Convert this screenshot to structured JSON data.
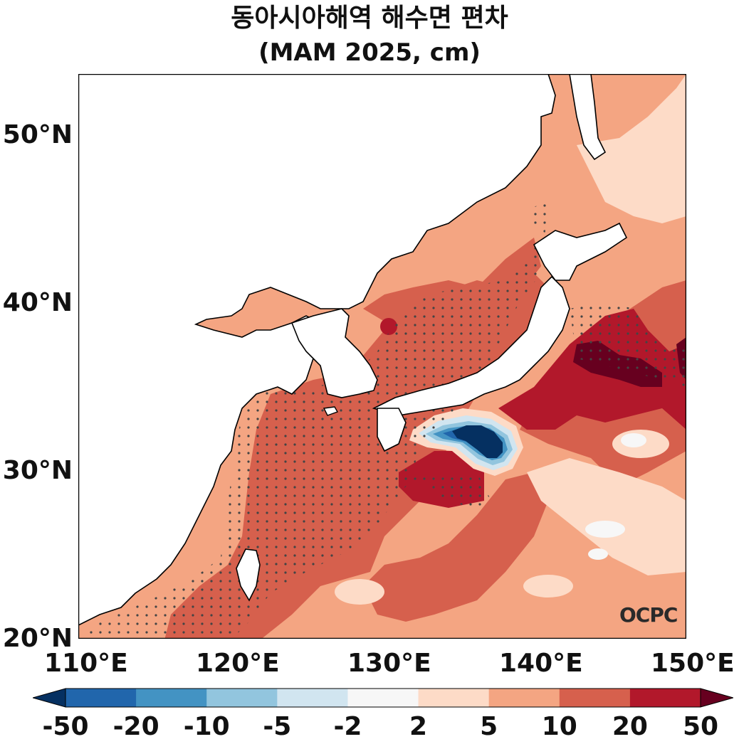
{
  "title": {
    "line1": "동아시아해역 해수면 편차",
    "line2": "(MAM 2025, cm)"
  },
  "axes": {
    "lat_labels": [
      "50°N",
      "40°N",
      "30°N",
      "20°N"
    ],
    "lon_labels": [
      "110°E",
      "120°E",
      "130°E",
      "140°E",
      "150°E"
    ]
  },
  "colorbar": {
    "labels": [
      "-50",
      "-20",
      "-10",
      "-5",
      "-2",
      "2",
      "5",
      "10",
      "20",
      "50"
    ],
    "colors": [
      "#053061",
      "#2166ac",
      "#4393c3",
      "#92c5de",
      "#d1e5f0",
      "#f7f7f7",
      "#fddbc7",
      "#f4a582",
      "#d6604d",
      "#b2182b",
      "#67001f"
    ]
  },
  "logo": "OCPC",
  "colors": {
    "land": "#ffffff",
    "coast": "#000000",
    "stipple": "#444444"
  }
}
